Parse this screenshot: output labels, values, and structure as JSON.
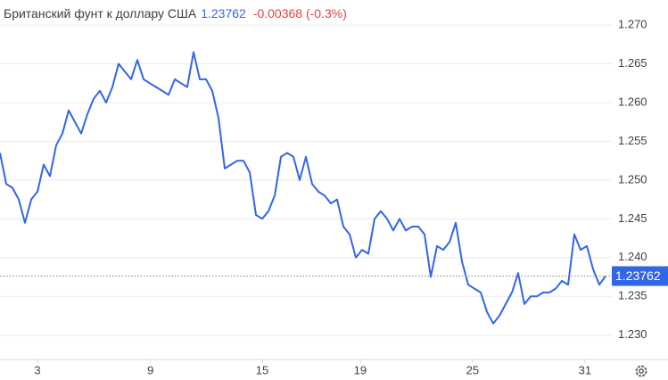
{
  "chart_data": {
    "type": "line",
    "title": "Британский фунт к доллару США",
    "price": 1.23762,
    "price_label": "1.23762",
    "change": "-0.00368 (-0.3%)",
    "series": [
      {
        "name": "GBP/USD",
        "color": "#3366e6",
        "values": [
          1.2535,
          1.2495,
          1.249,
          1.2475,
          1.2445,
          1.2475,
          1.2485,
          1.252,
          1.2505,
          1.2545,
          1.256,
          1.259,
          1.2575,
          1.256,
          1.2585,
          1.2605,
          1.2615,
          1.26,
          1.262,
          1.265,
          1.264,
          1.263,
          1.2655,
          1.263,
          1.2625,
          1.262,
          1.2615,
          1.261,
          1.263,
          1.2625,
          1.262,
          1.2665,
          1.263,
          1.263,
          1.2615,
          1.258,
          1.2515,
          1.252,
          1.2525,
          1.2525,
          1.251,
          1.2455,
          1.245,
          1.246,
          1.248,
          1.253,
          1.2535,
          1.253,
          1.25,
          1.253,
          1.2495,
          1.2485,
          1.248,
          1.247,
          1.2475,
          1.244,
          1.243,
          1.24,
          1.241,
          1.2405,
          1.245,
          1.246,
          1.245,
          1.2435,
          1.245,
          1.2435,
          1.244,
          1.244,
          1.243,
          1.2375,
          1.2415,
          1.241,
          1.242,
          1.2445,
          1.2395,
          1.2365,
          1.236,
          1.2355,
          1.233,
          1.2315,
          1.2325,
          1.234,
          1.2355,
          1.238,
          1.234,
          1.235,
          1.235,
          1.2355,
          1.2355,
          1.236,
          1.237,
          1.2365,
          1.243,
          1.241,
          1.2415,
          1.2385,
          1.2365,
          1.23762
        ]
      }
    ],
    "xlim": [
      0,
      98
    ],
    "xticks": [
      {
        "value": 6,
        "label": "3"
      },
      {
        "value": 24.1,
        "label": "9"
      },
      {
        "value": 42,
        "label": "15"
      },
      {
        "value": 57.7,
        "label": "19"
      },
      {
        "value": 75.7,
        "label": "25"
      },
      {
        "value": 93.7,
        "label": "31"
      }
    ],
    "ylim": [
      1.22686,
      1.27323
    ],
    "yticks": [
      {
        "value": 1.27,
        "label": "1.270"
      },
      {
        "value": 1.265,
        "label": "1.265"
      },
      {
        "value": 1.26,
        "label": "1.260"
      },
      {
        "value": 1.255,
        "label": "1.255"
      },
      {
        "value": 1.25,
        "label": "1.250"
      },
      {
        "value": 1.245,
        "label": "1.245"
      },
      {
        "value": 1.24,
        "label": "1.240"
      },
      {
        "value": 1.235,
        "label": "1.235"
      },
      {
        "value": 1.23,
        "label": "1.230"
      }
    ],
    "grid": true
  }
}
